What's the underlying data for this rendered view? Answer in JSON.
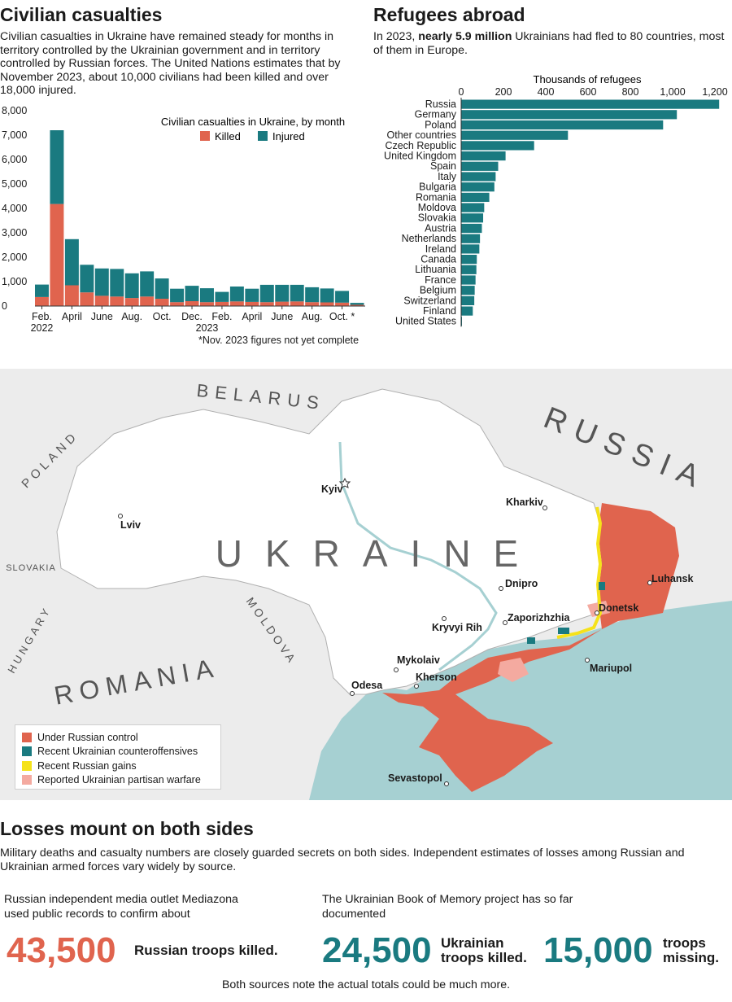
{
  "colors": {
    "killed": "#e0644e",
    "injured": "#1a7a80",
    "teal": "#1a7a80",
    "orange": "#e0644e",
    "yellow": "#f5e21a",
    "pink": "#f4aaa0",
    "sea": "#a6d0d2",
    "land": "#ececec",
    "ukraine": "#ffffff"
  },
  "casualties": {
    "title": "Civilian casualties",
    "intro": "Civilian casualties in Ukraine have remained steady for months in territory controlled by the Ukrainian government and in territory controlled by Russian forces. The United Nations estimates that by November 2023, about 10,000 civilians had been killed and over 18,000 injured.",
    "footnote": "*Nov. 2023 figures not yet complete"
  },
  "refugees": {
    "title": "Refugees abroad",
    "intro_pre": "In 2023, ",
    "intro_bold": "nearly 5.9 million",
    "intro_post": " Ukrainians had fled to 80 countries, most of them in Europe."
  },
  "chart_data": [
    {
      "type": "bar",
      "stacked": true,
      "title": "Civilian casualties in Ukraine, by month",
      "categories": [
        "Feb. 2022",
        "Mar. 2022",
        "Apr. 2022",
        "May 2022",
        "Jun. 2022",
        "Jul. 2022",
        "Aug. 2022",
        "Sep. 2022",
        "Oct. 2022",
        "Nov. 2022",
        "Dec. 2022",
        "Jan. 2023",
        "Feb. 2023",
        "Mar. 2023",
        "Apr. 2023",
        "May 2023",
        "Jun. 2023",
        "Jul. 2023",
        "Aug. 2023",
        "Sep. 2023",
        "Oct. 2023",
        "Nov. 2023*"
      ],
      "x_tick_labels": [
        "Feb.",
        "April",
        "June",
        "Aug.",
        "Oct.",
        "Dec.",
        "Feb.",
        "April",
        "June",
        "Aug.",
        "Oct. *"
      ],
      "x_tick_years": [
        "2022",
        "2023"
      ],
      "series": [
        {
          "name": "Killed",
          "values": [
            370,
            4180,
            850,
            560,
            420,
            390,
            330,
            390,
            300,
            160,
            200,
            160,
            170,
            190,
            170,
            160,
            180,
            190,
            160,
            150,
            140,
            50
          ]
        },
        {
          "name": "Injured",
          "values": [
            510,
            3020,
            1890,
            1130,
            1120,
            1130,
            1010,
            1030,
            830,
            550,
            630,
            570,
            410,
            610,
            540,
            710,
            690,
            680,
            610,
            570,
            480,
            80
          ]
        }
      ],
      "y_ticks": [
        "0",
        "1,000",
        "2,000",
        "3,000",
        "4,000",
        "5,000",
        "6,000",
        "7,000",
        "8,000"
      ],
      "ylim": [
        0,
        8000
      ],
      "legend": "top-right"
    },
    {
      "type": "bar",
      "orientation": "horizontal",
      "xlabel": "Thousands of refugees",
      "x_ticks": [
        "0",
        "200",
        "400",
        "600",
        "800",
        "1,000",
        "1,200"
      ],
      "xlim": [
        0,
        1250
      ],
      "categories": [
        "Russia",
        "Germany",
        "Poland",
        "Other countries",
        "Czech Republic",
        "United Kingdom",
        "Spain",
        "Italy",
        "Bulgaria",
        "Romania",
        "Moldova",
        "Slovakia",
        "Austria",
        "Netherlands",
        "Ireland",
        "Canada",
        "Lithuania",
        "France",
        "Belgium",
        "Switzerland",
        "Finland",
        "United States"
      ],
      "values": [
        1220,
        1020,
        955,
        505,
        345,
        210,
        175,
        163,
        157,
        133,
        109,
        104,
        98,
        89,
        86,
        74,
        72,
        68,
        64,
        62,
        55,
        2
      ]
    }
  ],
  "map": {
    "countries": {
      "belarus": "BELARUS",
      "russia": "RUSSIA",
      "poland": "POLAND",
      "slovakia": "SLOVAKIA",
      "hungary": "HUNGARY",
      "moldova": "MOLDOVA",
      "romania": "ROMANIA",
      "ukraine": "UKRAINE"
    },
    "cities": {
      "kyiv": "Kyiv",
      "kharkiv": "Kharkiv",
      "lviv": "Lviv",
      "dnipro": "Dnipro",
      "luhansk": "Luhansk",
      "donetsk": "Donetsk",
      "zaporizhzhia": "Zaporizhzhia",
      "kryvyi_rih": "Kryvyi Rih",
      "mykolaiv": "Mykolaiv",
      "kherson": "Kherson",
      "odesa": "Odesa",
      "mariupol": "Mariupol",
      "sevastopol": "Sevastopol"
    },
    "legend": [
      "Under Russian control",
      "Recent Ukrainian counteroffensives",
      "Recent Russian gains",
      "Reported Ukrainian partisan warfare"
    ]
  },
  "losses": {
    "title": "Losses mount on both sides",
    "intro": "Military deaths and casualty numbers are closely guarded secrets on both sides. Independent estimates of losses among Russian and Ukrainian armed forces vary widely by source.",
    "russia_source_line1": "Russian independent media outlet Mediazona",
    "russia_source_line2": "used public records to confirm about",
    "russia_number": "43,500",
    "russia_label": "Russian troops killed.",
    "ukraine_source_line1": "The Ukrainian Book of Memory project has so far",
    "ukraine_source_line2": "documented",
    "ukraine_killed_number": "24,500",
    "ukraine_killed_label_line1": "Ukrainian",
    "ukraine_killed_label_line2": "troops killed.",
    "ukraine_missing_number": "15,000",
    "ukraine_missing_label_line1": "troops",
    "ukraine_missing_label_line2": "missing.",
    "footer": "Both sources note the actual totals could be much more."
  }
}
